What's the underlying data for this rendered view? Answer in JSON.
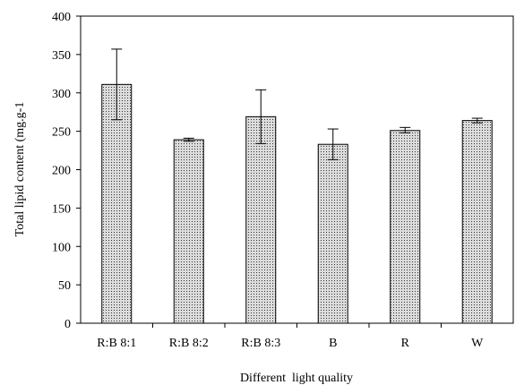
{
  "chart_data": {
    "type": "bar",
    "categories": [
      "R:B 8:1",
      "R:B 8:2",
      "R:B 8:3",
      "B",
      "R",
      "W"
    ],
    "values": [
      311,
      239,
      269,
      233,
      251,
      264
    ],
    "errors": [
      [
        265,
        357
      ],
      [
        237,
        241
      ],
      [
        234,
        304
      ],
      [
        213,
        253
      ],
      [
        248,
        255
      ],
      [
        261,
        267
      ]
    ],
    "xlabel": "Different  light quality",
    "ylabel": "Total lipid content (mg.g-1",
    "ylim": [
      0,
      400
    ],
    "yticks": [
      0,
      50,
      100,
      150,
      200,
      250,
      300,
      350,
      400
    ],
    "grid": false,
    "bar_fill": "dotted",
    "colors": {
      "bar_fill": "#dcdcdc",
      "bar_dots": "#333333",
      "axis": "#000000"
    }
  }
}
